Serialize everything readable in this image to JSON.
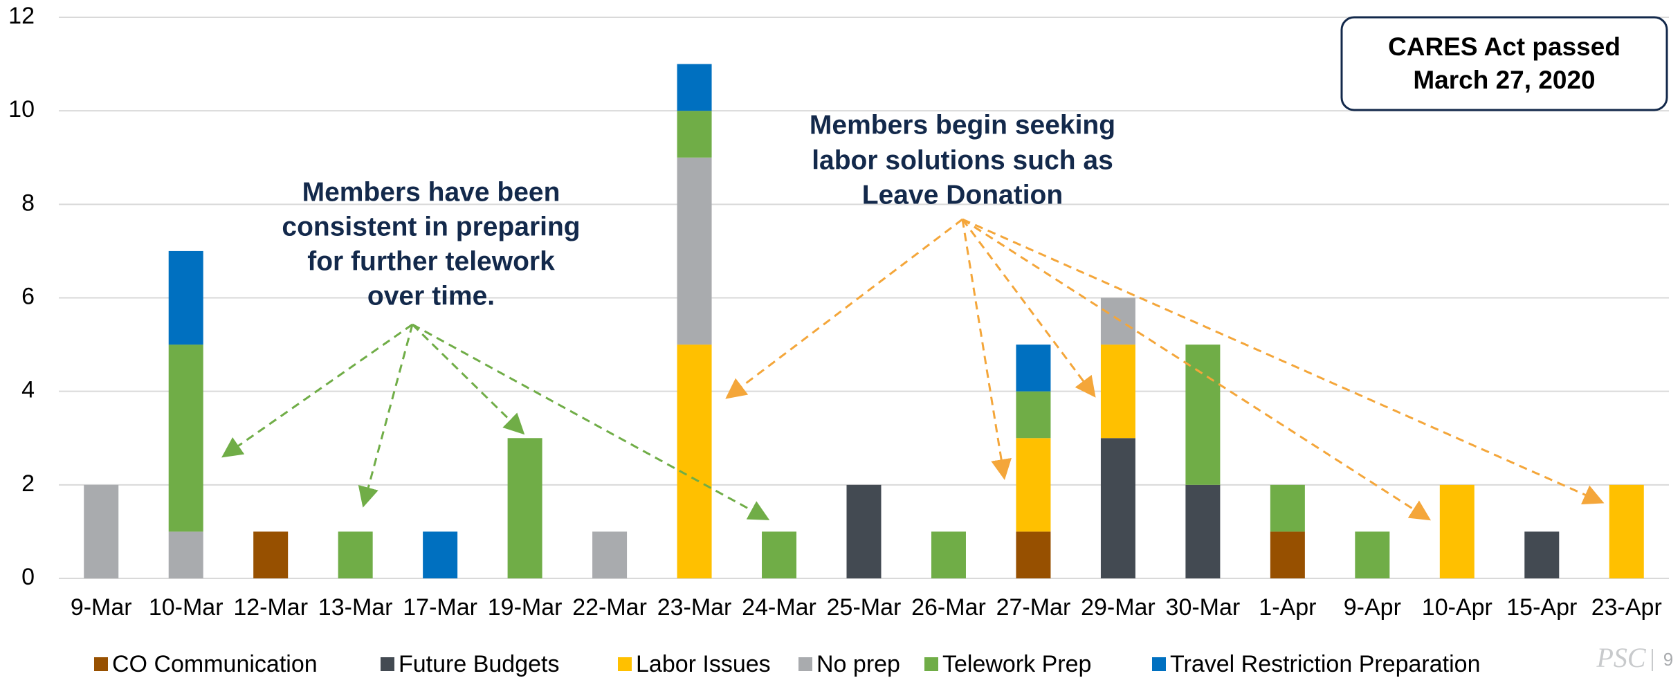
{
  "chart_data": {
    "type": "stacked-bar",
    "categories": [
      "9-Mar",
      "10-Mar",
      "12-Mar",
      "13-Mar",
      "17-Mar",
      "19-Mar",
      "22-Mar",
      "23-Mar",
      "24-Mar",
      "25-Mar",
      "26-Mar",
      "27-Mar",
      "29-Mar",
      "30-Mar",
      "1-Apr",
      "9-Apr",
      "10-Apr",
      "15-Apr",
      "23-Apr"
    ],
    "series": [
      {
        "name": "CO Communication",
        "color": "#975000",
        "values": [
          0,
          0,
          1,
          0,
          0,
          0,
          0,
          0,
          0,
          0,
          0,
          1,
          0,
          0,
          1,
          0,
          0,
          0,
          0
        ]
      },
      {
        "name": "Future Budgets",
        "color": "#434a52",
        "values": [
          0,
          0,
          0,
          0,
          0,
          0,
          0,
          0,
          0,
          2,
          0,
          0,
          3,
          2,
          0,
          0,
          0,
          1,
          0
        ]
      },
      {
        "name": "Labor Issues",
        "color": "#ffc000",
        "values": [
          0,
          0,
          0,
          0,
          0,
          0,
          0,
          5,
          0,
          0,
          0,
          2,
          2,
          0,
          0,
          0,
          2,
          0,
          2
        ]
      },
      {
        "name": "No prep",
        "color": "#a9abae",
        "values": [
          2,
          1,
          0,
          0,
          0,
          0,
          1,
          4,
          0,
          0,
          0,
          0,
          1,
          0,
          0,
          0,
          0,
          0,
          0
        ]
      },
      {
        "name": "Telework Prep",
        "color": "#70ad47",
        "values": [
          0,
          4,
          0,
          1,
          0,
          3,
          0,
          1,
          1,
          0,
          1,
          1,
          0,
          3,
          1,
          1,
          0,
          0,
          0
        ]
      },
      {
        "name": "Travel Restriction Preparation",
        "color": "#0070c0",
        "values": [
          0,
          2,
          0,
          0,
          1,
          0,
          0,
          1,
          0,
          0,
          0,
          1,
          0,
          0,
          0,
          0,
          0,
          0,
          0
        ]
      }
    ],
    "ylim": [
      0,
      12
    ],
    "yticks": [
      0,
      2,
      4,
      6,
      8,
      10,
      12
    ],
    "grid": true,
    "legend": "bottom",
    "annotations": [
      [
        "Members have been",
        "consistent in preparing",
        "for further telework",
        "over time."
      ],
      [
        "Members begin seeking",
        "labor solutions such as",
        "Leave Donation"
      ],
      [
        "CARES Act passed",
        "March 27, 2020"
      ]
    ]
  },
  "footer": {
    "logo": "PSC",
    "page": "9"
  }
}
